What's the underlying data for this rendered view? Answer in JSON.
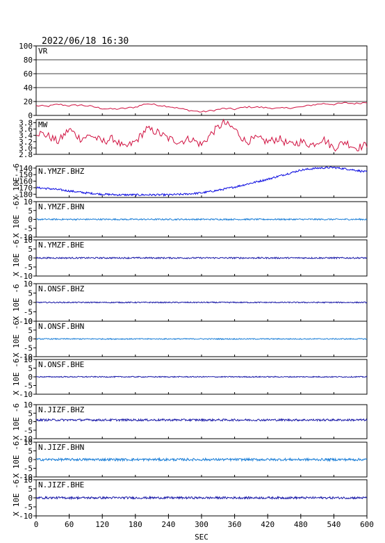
{
  "header": {
    "datetime": "2022/06/18 16:30"
  },
  "colors": {
    "vr": "#d01040",
    "trace_dark": "#1a1aa8",
    "trace_light": "#1c7fd8",
    "trace_bhz_ymzf": "#0a0ae0",
    "frame": "#000000"
  },
  "chart_data": [
    {
      "type": "line",
      "title": "VR",
      "ylim": [
        0,
        100
      ],
      "yticks": [
        0,
        20,
        40,
        60,
        80,
        100
      ],
      "grid": "horizontal",
      "x": [
        0,
        20,
        40,
        60,
        80,
        100,
        120,
        140,
        160,
        180,
        200,
        220,
        240,
        260,
        280,
        300,
        320,
        340,
        360,
        380,
        400,
        420,
        440,
        460,
        480,
        500,
        520,
        540,
        560,
        580,
        600
      ],
      "values": [
        14,
        13,
        16,
        14,
        15,
        13,
        10,
        9,
        10,
        12,
        17,
        15,
        13,
        10,
        7,
        5,
        7,
        10,
        9,
        12,
        12,
        11,
        10,
        11,
        12,
        15,
        17,
        16,
        18,
        17,
        19
      ]
    },
    {
      "type": "line",
      "title": "MW",
      "ylim": [
        2.8,
        3.9
      ],
      "yticks": [
        2.8,
        3.0,
        3.2,
        3.4,
        3.6,
        3.8
      ],
      "ytick_labels": [
        "2.8",
        "3.0",
        "3.2",
        "3.4",
        "3.6",
        "3.8"
      ],
      "x": [
        0,
        20,
        40,
        60,
        80,
        100,
        120,
        140,
        160,
        180,
        200,
        220,
        240,
        260,
        280,
        300,
        320,
        340,
        360,
        380,
        400,
        420,
        440,
        460,
        480,
        500,
        520,
        540,
        560,
        580,
        600
      ],
      "values": [
        3.5,
        3.4,
        3.2,
        3.6,
        3.3,
        3.4,
        3.2,
        3.3,
        3.0,
        3.2,
        3.6,
        3.5,
        3.3,
        3.2,
        3.3,
        3.1,
        3.5,
        3.8,
        3.6,
        3.2,
        3.3,
        3.2,
        3.3,
        3.1,
        3.2,
        3.1,
        3.3,
        3.0,
        3.2,
        3.0,
        3.1
      ]
    },
    {
      "type": "line",
      "title": "N.YMZF.BHZ",
      "ylim": [
        -185,
        -137
      ],
      "yticks": [
        -140,
        -150,
        -160,
        -170,
        -180
      ],
      "ytick_labels": [
        "-140",
        "-150",
        "-160",
        "-170",
        "-180"
      ],
      "ylabel": "X 10E -6",
      "x": [
        0,
        30,
        60,
        90,
        120,
        150,
        180,
        210,
        240,
        270,
        300,
        330,
        360,
        390,
        420,
        450,
        480,
        510,
        540,
        570,
        600
      ],
      "values": [
        -170,
        -172,
        -175,
        -178,
        -180,
        -181,
        -181,
        -181,
        -181,
        -180,
        -178,
        -174,
        -169,
        -163,
        -157,
        -150,
        -143,
        -140,
        -139,
        -142,
        -146
      ]
    },
    {
      "type": "line",
      "title": "N.YMZF.BHN",
      "ylim": [
        -10,
        10
      ],
      "yticks": [
        -10,
        -5,
        0,
        5,
        10
      ],
      "ytick_labels": [
        "-10",
        "-5",
        "0",
        "5",
        "10"
      ],
      "ylabel": "X 10E -6",
      "x": [
        0,
        600
      ],
      "values": [
        0,
        0
      ],
      "noise_amplitude": 0.4
    },
    {
      "type": "line",
      "title": "N.YMZF.BHE",
      "ylim": [
        -10,
        10
      ],
      "yticks": [
        -10,
        -5,
        0,
        5,
        10
      ],
      "ytick_labels": [
        "-10",
        "-5",
        "0",
        "5",
        "10"
      ],
      "ylabel": "X 10E -6",
      "x": [
        0,
        600
      ],
      "values": [
        0,
        0
      ],
      "noise_amplitude": 0.4
    },
    {
      "type": "line",
      "title": "N.ONSF.BHZ",
      "ylim": [
        -10,
        10
      ],
      "yticks": [
        -10,
        -5,
        0,
        5,
        10
      ],
      "ytick_labels": [
        "-10",
        "-5",
        "0",
        "5",
        "10"
      ],
      "ylabel": "X 10E -6",
      "x": [
        0,
        600
      ],
      "values": [
        0,
        0
      ],
      "noise_amplitude": 0.3
    },
    {
      "type": "line",
      "title": "N.ONSF.BHN",
      "ylim": [
        -10,
        10
      ],
      "yticks": [
        -10,
        -5,
        0,
        5,
        10
      ],
      "ytick_labels": [
        "-10",
        "-5",
        "0",
        "5",
        "10"
      ],
      "ylabel": "X 10E -6",
      "x": [
        0,
        600
      ],
      "values": [
        0,
        0
      ],
      "noise_amplitude": 0.3
    },
    {
      "type": "line",
      "title": "N.ONSF.BHE",
      "ylim": [
        -10,
        10
      ],
      "yticks": [
        -10,
        -5,
        0,
        5,
        10
      ],
      "ytick_labels": [
        "-10",
        "-5",
        "0",
        "5",
        "10"
      ],
      "ylabel": "X 10E -6",
      "x": [
        0,
        600
      ],
      "values": [
        0,
        0
      ],
      "noise_amplitude": 0.3
    },
    {
      "type": "line",
      "title": "N.JIZF.BHZ",
      "ylim": [
        -10,
        10
      ],
      "yticks": [
        -10,
        -5,
        0,
        5,
        10
      ],
      "ytick_labels": [
        "-10",
        "-5",
        "0",
        "5",
        "10"
      ],
      "ylabel": "X 10E -6",
      "x": [
        0,
        600
      ],
      "values": [
        1,
        1
      ],
      "noise_amplitude": 0.6
    },
    {
      "type": "line",
      "title": "N.JIZF.BHN",
      "ylim": [
        -10,
        10
      ],
      "yticks": [
        -10,
        -5,
        0,
        5,
        10
      ],
      "ytick_labels": [
        "-10",
        "-5",
        "0",
        "5",
        "10"
      ],
      "ylabel": "X 10E -6",
      "x": [
        0,
        600
      ],
      "values": [
        0,
        0
      ],
      "noise_amplitude": 0.7
    },
    {
      "type": "line",
      "title": "N.JIZF.BHE",
      "ylim": [
        -10,
        10
      ],
      "yticks": [
        -10,
        -5,
        0,
        5,
        10
      ],
      "ytick_labels": [
        "-10",
        "-5",
        "0",
        "5",
        "10"
      ],
      "ylabel": "X 10E -6",
      "x": [
        0,
        600
      ],
      "values": [
        0,
        0
      ],
      "noise_amplitude": 0.6
    }
  ],
  "x_axis": {
    "xlim": [
      0,
      600
    ],
    "ticks": [
      0,
      60,
      120,
      180,
      240,
      300,
      360,
      420,
      480,
      540,
      600
    ],
    "tick_labels": [
      "0",
      "60",
      "120",
      "180",
      "240",
      "300",
      "360",
      "420",
      "480",
      "540",
      "600"
    ],
    "label": "SEC"
  }
}
